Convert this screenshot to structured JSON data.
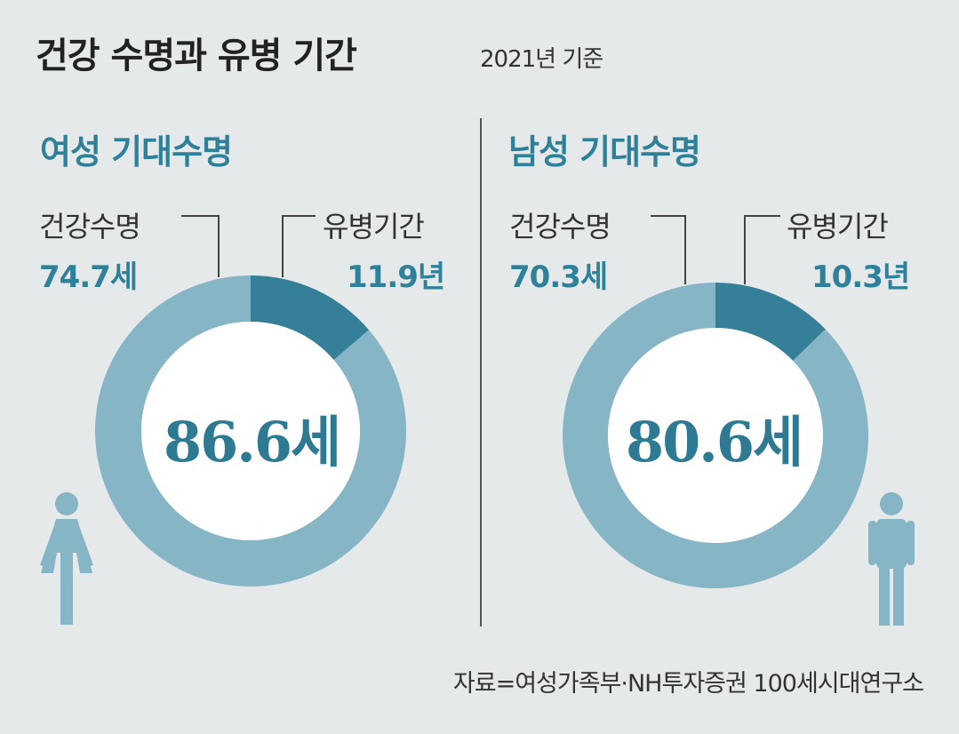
{
  "title": "건강 수명과 유병 기간",
  "subtitle": "2021년 기준",
  "source": "자료=여성가족부·NH투자증권 100세시대연구소",
  "colors": {
    "healthy": "#86b5c5",
    "illness": "#367f98",
    "accent_text": "#2f8199",
    "background": "#e6e9ea"
  },
  "chart_data": [
    {
      "type": "pie",
      "title": "여성 기대수명",
      "center_label": "86.6세",
      "total": 86.6,
      "segments": [
        {
          "name": "건강수명",
          "value": 74.7,
          "value_label": "74.7세",
          "color": "#86b5c5"
        },
        {
          "name": "유병기간",
          "value": 11.9,
          "value_label": "11.9년",
          "color": "#367f98"
        }
      ],
      "icon": "female-icon"
    },
    {
      "type": "pie",
      "title": "남성 기대수명",
      "center_label": "80.6세",
      "total": 80.6,
      "segments": [
        {
          "name": "건강수명",
          "value": 70.3,
          "value_label": "70.3세",
          "color": "#86b5c5"
        },
        {
          "name": "유병기간",
          "value": 10.3,
          "value_label": "10.3년",
          "color": "#367f98"
        }
      ],
      "icon": "male-icon"
    }
  ]
}
